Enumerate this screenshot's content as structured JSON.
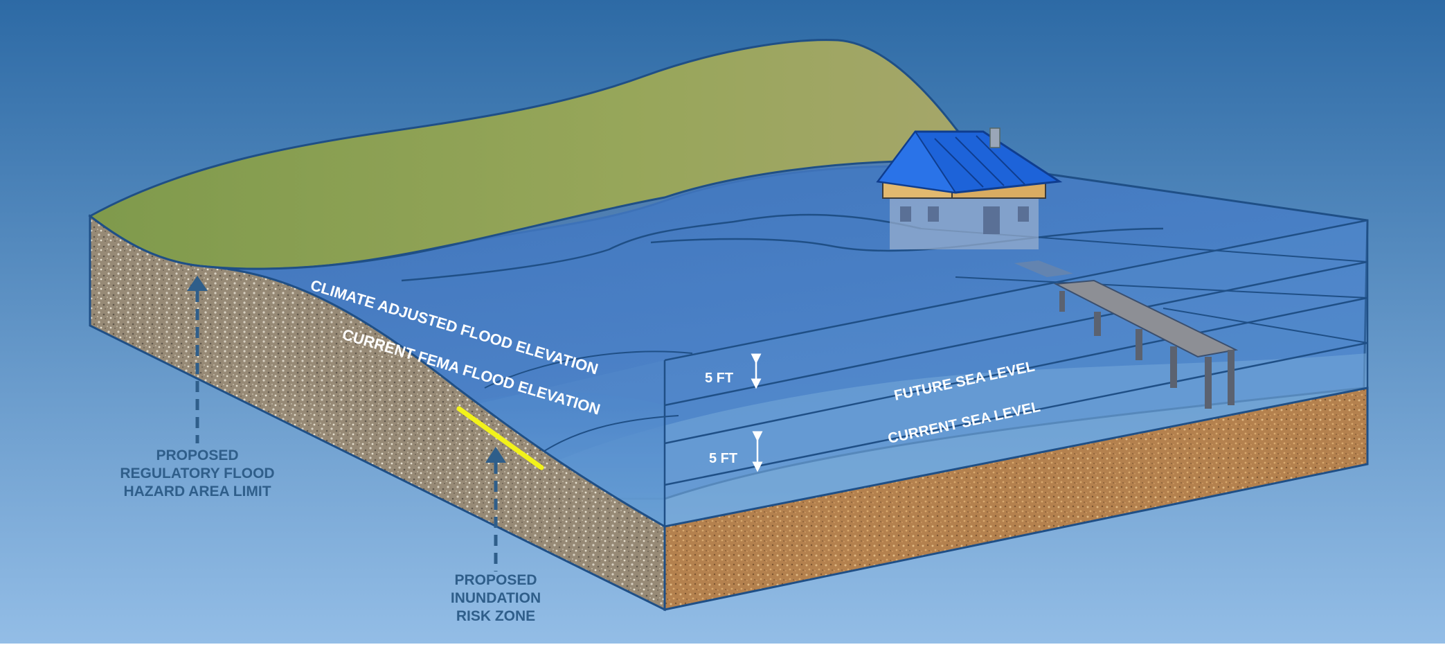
{
  "labels": {
    "climate_adjusted": "CLIMATE ADJUSTED FLOOD ELEVATION",
    "current_fema": "CURRENT FEMA FLOOD ELEVATION",
    "future_sea_level": "FUTURE SEA LEVEL",
    "current_sea_level": "CURRENT SEA LEVEL",
    "gap_upper": "5 FT",
    "gap_lower": "5 FT"
  },
  "callouts": {
    "regulatory_limit": [
      "PROPOSED",
      "REGULATORY FLOOD",
      "HAZARD AREA LIMIT"
    ],
    "inundation_zone": [
      "PROPOSED",
      "INUNDATION",
      "RISK ZONE"
    ]
  },
  "colors": {
    "background_top": "#2e6aa3",
    "background_bottom": "#8db8e2",
    "hill": "#93a45a",
    "water": "#3d78c2",
    "gravel": "#9b8e7b",
    "sand": "#b88652",
    "roof": "#1d63d9",
    "house_wall": "#e1b970",
    "risk_zone_line": "#f2f21a",
    "label_text": "#ffffff",
    "callout_text": "#2f5e8a"
  },
  "icons": {
    "house": "house-icon",
    "dock": "dock-icon",
    "arrows": "arrow-up-icon"
  }
}
